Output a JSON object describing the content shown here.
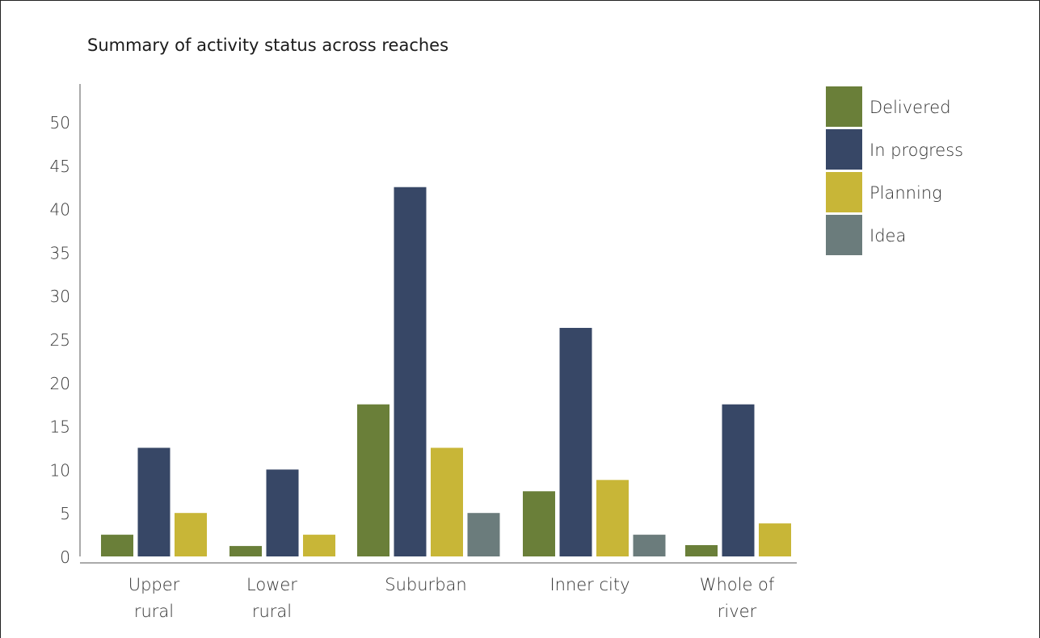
{
  "chart_data": {
    "type": "bar",
    "title": "Summary of activity status across reaches",
    "xlabel": "",
    "ylabel": "",
    "ylim": [
      0,
      50
    ],
    "yticks": [
      0,
      5,
      10,
      15,
      20,
      25,
      30,
      35,
      40,
      45,
      50
    ],
    "grid": false,
    "legend_position": "top-right",
    "categories": [
      [
        "Upper",
        "rural"
      ],
      [
        "Lower",
        "rural"
      ],
      [
        "Suburban"
      ],
      [
        "Inner city"
      ],
      [
        "Whole of",
        "river"
      ]
    ],
    "series": [
      {
        "name": "Delivered",
        "color": "#6a7f39",
        "values": [
          2.5,
          1.2,
          17.5,
          7.5,
          1.3
        ]
      },
      {
        "name": "In progress",
        "color": "#374766",
        "values": [
          12.5,
          10,
          42.5,
          26.3,
          17.5
        ]
      },
      {
        "name": "Planning",
        "color": "#c8b637",
        "values": [
          5,
          2.5,
          12.5,
          8.8,
          3.8
        ]
      },
      {
        "name": "Idea",
        "color": "#6b7c7c",
        "values": [
          null,
          null,
          5,
          2.5,
          null
        ]
      }
    ]
  }
}
